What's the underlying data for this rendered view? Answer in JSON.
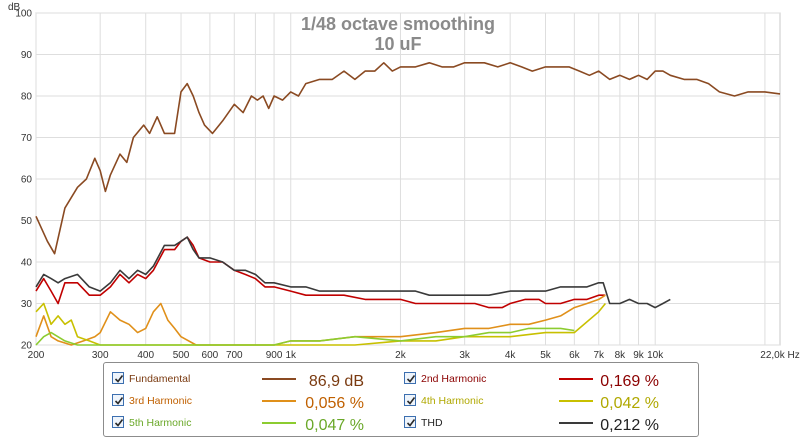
{
  "chart_data": {
    "type": "line",
    "title": "1/48 octave smoothing",
    "subtitle": "10 uF",
    "ylabel": "dB",
    "xlabel": "",
    "x_scale": "log",
    "xlim": [
      200,
      22000
    ],
    "ylim": [
      20,
      100
    ],
    "grid": true,
    "y_ticks": [
      "20",
      "30",
      "40",
      "50",
      "60",
      "70",
      "80",
      "90",
      "100"
    ],
    "x_ticks": [
      {
        "v": 200,
        "label": "200"
      },
      {
        "v": 300,
        "label": "300"
      },
      {
        "v": 400,
        "label": "400"
      },
      {
        "v": 500,
        "label": "500"
      },
      {
        "v": 600,
        "label": "600"
      },
      {
        "v": 700,
        "label": "700"
      },
      {
        "v": 900,
        "label": "900"
      },
      {
        "v": 1000,
        "label": "1k"
      },
      {
        "v": 2000,
        "label": "2k"
      },
      {
        "v": 3000,
        "label": "3k"
      },
      {
        "v": 4000,
        "label": "4k"
      },
      {
        "v": 5000,
        "label": "5k"
      },
      {
        "v": 6000,
        "label": "6k"
      },
      {
        "v": 7000,
        "label": "7k"
      },
      {
        "v": 8000,
        "label": "8k"
      },
      {
        "v": 9000,
        "label": "9k"
      },
      {
        "v": 10000,
        "label": "10k"
      },
      {
        "v": 22000,
        "label": "22,0k Hz"
      }
    ],
    "series": [
      {
        "name": "Fundamental",
        "color": "#8a4a22",
        "value": "86,9 dB",
        "label_color": "#7a3a10",
        "checked": true,
        "points": [
          [
            200,
            51
          ],
          [
            215,
            45
          ],
          [
            225,
            42
          ],
          [
            240,
            53
          ],
          [
            260,
            58
          ],
          [
            275,
            60
          ],
          [
            290,
            65
          ],
          [
            300,
            62
          ],
          [
            310,
            57
          ],
          [
            320,
            61
          ],
          [
            340,
            66
          ],
          [
            355,
            64
          ],
          [
            370,
            70
          ],
          [
            395,
            73
          ],
          [
            410,
            71
          ],
          [
            430,
            75
          ],
          [
            450,
            71
          ],
          [
            480,
            71
          ],
          [
            500,
            81
          ],
          [
            520,
            83
          ],
          [
            540,
            80
          ],
          [
            560,
            76
          ],
          [
            580,
            73
          ],
          [
            610,
            71
          ],
          [
            650,
            74
          ],
          [
            700,
            78
          ],
          [
            740,
            76
          ],
          [
            780,
            80
          ],
          [
            810,
            79
          ],
          [
            840,
            80
          ],
          [
            870,
            77
          ],
          [
            900,
            80
          ],
          [
            950,
            79
          ],
          [
            1000,
            81
          ],
          [
            1050,
            80
          ],
          [
            1100,
            83
          ],
          [
            1200,
            84
          ],
          [
            1300,
            84
          ],
          [
            1400,
            86
          ],
          [
            1500,
            84
          ],
          [
            1600,
            86
          ],
          [
            1700,
            86
          ],
          [
            1800,
            88
          ],
          [
            1900,
            86
          ],
          [
            2000,
            87
          ],
          [
            2200,
            87
          ],
          [
            2400,
            88
          ],
          [
            2600,
            87
          ],
          [
            2800,
            87
          ],
          [
            3000,
            88
          ],
          [
            3200,
            88
          ],
          [
            3400,
            88
          ],
          [
            3700,
            87
          ],
          [
            4000,
            88
          ],
          [
            4300,
            87
          ],
          [
            4600,
            86
          ],
          [
            5000,
            87
          ],
          [
            5400,
            87
          ],
          [
            5800,
            87
          ],
          [
            6200,
            86
          ],
          [
            6600,
            85
          ],
          [
            7000,
            86
          ],
          [
            7500,
            84
          ],
          [
            8000,
            85
          ],
          [
            8500,
            84
          ],
          [
            9000,
            85
          ],
          [
            9500,
            84
          ],
          [
            10000,
            86
          ],
          [
            10500,
            86
          ],
          [
            11000,
            85
          ],
          [
            12000,
            84
          ],
          [
            13000,
            84
          ],
          [
            14000,
            83
          ],
          [
            15000,
            81
          ],
          [
            16500,
            80
          ],
          [
            18000,
            81
          ],
          [
            20000,
            81
          ],
          [
            22000,
            80.5
          ]
        ]
      },
      {
        "name": "2nd Harmonic",
        "color": "#c00000",
        "value": "0,169 %",
        "label_color": "#8b0000",
        "checked": true,
        "points": [
          [
            200,
            33
          ],
          [
            210,
            36
          ],
          [
            220,
            33
          ],
          [
            230,
            30
          ],
          [
            240,
            35
          ],
          [
            260,
            35
          ],
          [
            280,
            32
          ],
          [
            300,
            32
          ],
          [
            320,
            34
          ],
          [
            340,
            37
          ],
          [
            360,
            35
          ],
          [
            380,
            37
          ],
          [
            400,
            36
          ],
          [
            420,
            38
          ],
          [
            450,
            43
          ],
          [
            480,
            43
          ],
          [
            500,
            45
          ],
          [
            520,
            46
          ],
          [
            540,
            44
          ],
          [
            560,
            41
          ],
          [
            600,
            40
          ],
          [
            650,
            40
          ],
          [
            700,
            38
          ],
          [
            750,
            37
          ],
          [
            800,
            36
          ],
          [
            850,
            34
          ],
          [
            900,
            34
          ],
          [
            1000,
            33
          ],
          [
            1100,
            32
          ],
          [
            1200,
            32
          ],
          [
            1400,
            32
          ],
          [
            1600,
            31
          ],
          [
            1800,
            31
          ],
          [
            2000,
            31
          ],
          [
            2200,
            30
          ],
          [
            2400,
            30
          ],
          [
            2600,
            30
          ],
          [
            2800,
            30
          ],
          [
            3000,
            30
          ],
          [
            3200,
            30
          ],
          [
            3500,
            29
          ],
          [
            3800,
            29
          ],
          [
            4000,
            30
          ],
          [
            4400,
            31
          ],
          [
            4800,
            31
          ],
          [
            5000,
            30
          ],
          [
            5500,
            30
          ],
          [
            6000,
            31
          ],
          [
            6500,
            31
          ],
          [
            7000,
            32
          ],
          [
            7300,
            32
          ]
        ]
      },
      {
        "name": "3rd Harmonic",
        "color": "#e0901a",
        "value": "0,056 %",
        "label_color": "#c06000",
        "checked": true,
        "points": [
          [
            200,
            22
          ],
          [
            210,
            27
          ],
          [
            220,
            22
          ],
          [
            230,
            21
          ],
          [
            250,
            20
          ],
          [
            270,
            21
          ],
          [
            290,
            22
          ],
          [
            300,
            23
          ],
          [
            320,
            28
          ],
          [
            340,
            26
          ],
          [
            360,
            25
          ],
          [
            380,
            23
          ],
          [
            400,
            24
          ],
          [
            420,
            28
          ],
          [
            440,
            30
          ],
          [
            460,
            26
          ],
          [
            480,
            24
          ],
          [
            500,
            22
          ],
          [
            550,
            20
          ],
          [
            600,
            20
          ],
          [
            700,
            20
          ],
          [
            800,
            20
          ],
          [
            900,
            20
          ],
          [
            1000,
            21
          ],
          [
            1200,
            21
          ],
          [
            1500,
            22
          ],
          [
            2000,
            22
          ],
          [
            2500,
            23
          ],
          [
            3000,
            24
          ],
          [
            3500,
            24
          ],
          [
            4000,
            25
          ],
          [
            4500,
            25
          ],
          [
            5000,
            26
          ],
          [
            5500,
            27
          ],
          [
            6000,
            29
          ],
          [
            6500,
            30
          ],
          [
            7000,
            31
          ],
          [
            7300,
            32
          ]
        ]
      },
      {
        "name": "4th Harmonic",
        "color": "#c8c000",
        "value": "0,042 %",
        "label_color": "#b0a800",
        "checked": true,
        "points": [
          [
            200,
            28
          ],
          [
            210,
            30
          ],
          [
            220,
            25
          ],
          [
            230,
            27
          ],
          [
            240,
            25
          ],
          [
            250,
            26
          ],
          [
            260,
            22
          ],
          [
            280,
            21
          ],
          [
            300,
            20
          ],
          [
            400,
            20
          ],
          [
            600,
            20
          ],
          [
            1000,
            20
          ],
          [
            1500,
            20
          ],
          [
            2000,
            21
          ],
          [
            2500,
            21
          ],
          [
            3000,
            22
          ],
          [
            4000,
            22
          ],
          [
            5000,
            23
          ],
          [
            6000,
            23
          ],
          [
            7000,
            28
          ],
          [
            7300,
            30
          ]
        ]
      },
      {
        "name": "5th Harmonic",
        "color": "#8ccc30",
        "value": "0,047 %",
        "label_color": "#6aa828",
        "checked": true,
        "points": [
          [
            200,
            20
          ],
          [
            210,
            22
          ],
          [
            220,
            23
          ],
          [
            240,
            21
          ],
          [
            260,
            20
          ],
          [
            400,
            20
          ],
          [
            600,
            20
          ],
          [
            900,
            20
          ],
          [
            1000,
            21
          ],
          [
            1200,
            21
          ],
          [
            1500,
            22
          ],
          [
            2000,
            21
          ],
          [
            2500,
            22
          ],
          [
            3000,
            22
          ],
          [
            3500,
            23
          ],
          [
            4000,
            23
          ],
          [
            4500,
            24
          ],
          [
            5000,
            24
          ],
          [
            5500,
            24
          ],
          [
            6000,
            23.5
          ]
        ]
      },
      {
        "name": "THD",
        "color": "#3a3a3a",
        "value": "0,212 %",
        "label_color": "#222222",
        "checked": true,
        "points": [
          [
            200,
            34
          ],
          [
            210,
            37
          ],
          [
            220,
            36
          ],
          [
            230,
            35
          ],
          [
            240,
            36
          ],
          [
            260,
            37
          ],
          [
            280,
            34
          ],
          [
            300,
            33
          ],
          [
            320,
            35
          ],
          [
            340,
            38
          ],
          [
            360,
            36
          ],
          [
            380,
            38
          ],
          [
            400,
            37
          ],
          [
            420,
            39
          ],
          [
            450,
            44
          ],
          [
            480,
            44
          ],
          [
            500,
            45
          ],
          [
            520,
            46
          ],
          [
            540,
            43
          ],
          [
            560,
            41
          ],
          [
            600,
            41
          ],
          [
            650,
            40
          ],
          [
            700,
            38
          ],
          [
            750,
            38
          ],
          [
            800,
            37
          ],
          [
            850,
            35
          ],
          [
            900,
            35
          ],
          [
            1000,
            34
          ],
          [
            1100,
            34
          ],
          [
            1200,
            33
          ],
          [
            1400,
            33
          ],
          [
            1600,
            33
          ],
          [
            1800,
            33
          ],
          [
            2000,
            33
          ],
          [
            2200,
            33
          ],
          [
            2400,
            32
          ],
          [
            2600,
            32
          ],
          [
            2800,
            32
          ],
          [
            3000,
            32
          ],
          [
            3200,
            32
          ],
          [
            3500,
            32
          ],
          [
            4000,
            33
          ],
          [
            4500,
            33
          ],
          [
            5000,
            33
          ],
          [
            5500,
            34
          ],
          [
            6000,
            34
          ],
          [
            6500,
            34
          ],
          [
            7000,
            35
          ],
          [
            7200,
            35
          ],
          [
            7500,
            30
          ],
          [
            8000,
            30
          ],
          [
            8500,
            31
          ],
          [
            9000,
            30
          ],
          [
            9500,
            30
          ],
          [
            10000,
            29
          ],
          [
            10500,
            30
          ],
          [
            11000,
            31
          ]
        ]
      }
    ]
  }
}
